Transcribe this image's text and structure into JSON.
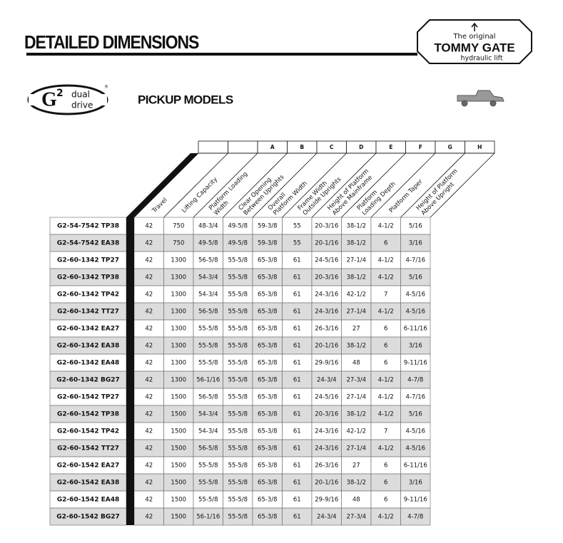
{
  "header": {
    "title": "DETAILED DIMENSIONS",
    "section": "PICKUP MODELS"
  },
  "brand": {
    "tagline": "The original",
    "name": "TOMMY GATE",
    "product": "hydraulic lift"
  },
  "g2_logo": {
    "letter": "G",
    "superscript": "2",
    "line1": "dual",
    "line2": "drive",
    "mark": "®"
  },
  "table": {
    "letters": [
      "A",
      "B",
      "C",
      "D",
      "E",
      "F",
      "G",
      "H"
    ],
    "headers": [
      [
        "Travel"
      ],
      [
        "Lifting Capacity"
      ],
      [
        "Platform Loading",
        "Width"
      ],
      [
        "Clear Opening",
        "Between Uprights"
      ],
      [
        "Overall",
        "Platform Width"
      ],
      [
        "Frame Width",
        "Outside Uprights"
      ],
      [
        "Height of Platform",
        "Above Mainframe"
      ],
      [
        "Platform",
        "Loading Depth"
      ],
      [
        "Platform Taper"
      ],
      [
        "Height of Platform",
        "Above Upright"
      ]
    ],
    "rows": [
      [
        "G2-54-7542 TP38",
        "42",
        "750",
        "48-3/4",
        "49-5/8",
        "59-3/8",
        "55",
        "20-3/16",
        "38-1/2",
        "4-1/2",
        "5/16"
      ],
      [
        "G2-54-7542 EA38",
        "42",
        "750",
        "49-5/8",
        "49-5/8",
        "59-3/8",
        "55",
        "20-1/16",
        "38-1/2",
        "6",
        "3/16"
      ],
      [
        "G2-60-1342 TP27",
        "42",
        "1300",
        "56-5/8",
        "55-5/8",
        "65-3/8",
        "61",
        "24-5/16",
        "27-1/4",
        "4-1/2",
        "4-7/16"
      ],
      [
        "G2-60-1342 TP38",
        "42",
        "1300",
        "54-3/4",
        "55-5/8",
        "65-3/8",
        "61",
        "20-3/16",
        "38-1/2",
        "4-1/2",
        "5/16"
      ],
      [
        "G2-60-1342 TP42",
        "42",
        "1300",
        "54-3/4",
        "55-5/8",
        "65-3/8",
        "61",
        "24-3/16",
        "42-1/2",
        "7",
        "4-5/16"
      ],
      [
        "G2-60-1342 TT27",
        "42",
        "1300",
        "56-5/8",
        "55-5/8",
        "65-3/8",
        "61",
        "24-3/16",
        "27-1/4",
        "4-1/2",
        "4-5/16"
      ],
      [
        "G2-60-1342 EA27",
        "42",
        "1300",
        "55-5/8",
        "55-5/8",
        "65-3/8",
        "61",
        "26-3/16",
        "27",
        "6",
        "6-11/16"
      ],
      [
        "G2-60-1342 EA38",
        "42",
        "1300",
        "55-5/8",
        "55-5/8",
        "65-3/8",
        "61",
        "20-1/16",
        "38-1/2",
        "6",
        "3/16"
      ],
      [
        "G2-60-1342 EA48",
        "42",
        "1300",
        "55-5/8",
        "55-5/8",
        "65-3/8",
        "61",
        "29-9/16",
        "48",
        "6",
        "9-11/16"
      ],
      [
        "G2-60-1342 BG27",
        "42",
        "1300",
        "56-1/16",
        "55-5/8",
        "65-3/8",
        "61",
        "24-3/4",
        "27-3/4",
        "4-1/2",
        "4-7/8"
      ],
      [
        "G2-60-1542 TP27",
        "42",
        "1500",
        "56-5/8",
        "55-5/8",
        "65-3/8",
        "61",
        "24-5/16",
        "27-1/4",
        "4-1/2",
        "4-7/16"
      ],
      [
        "G2-60-1542 TP38",
        "42",
        "1500",
        "54-3/4",
        "55-5/8",
        "65-3/8",
        "61",
        "20-3/16",
        "38-1/2",
        "4-1/2",
        "5/16"
      ],
      [
        "G2-60-1542 TP42",
        "42",
        "1500",
        "54-3/4",
        "55-5/8",
        "65-3/8",
        "61",
        "24-3/16",
        "42-1/2",
        "7",
        "4-5/16"
      ],
      [
        "G2-60-1542 TT27",
        "42",
        "1500",
        "56-5/8",
        "55-5/8",
        "65-3/8",
        "61",
        "24-3/16",
        "27-1/4",
        "4-1/2",
        "4-5/16"
      ],
      [
        "G2-60-1542 EA27",
        "42",
        "1500",
        "55-5/8",
        "55-5/8",
        "65-3/8",
        "61",
        "26-3/16",
        "27",
        "6",
        "6-11/16"
      ],
      [
        "G2-60-1542 EA38",
        "42",
        "1500",
        "55-5/8",
        "55-5/8",
        "65-3/8",
        "61",
        "20-1/16",
        "38-1/2",
        "6",
        "3/16"
      ],
      [
        "G2-60-1542 EA48",
        "42",
        "1500",
        "55-5/8",
        "55-5/8",
        "65-3/8",
        "61",
        "29-9/16",
        "48",
        "6",
        "9-11/16"
      ],
      [
        "G2-60-1542 BG27",
        "42",
        "1500",
        "56-1/16",
        "55-5/8",
        "65-3/8",
        "61",
        "24-3/4",
        "27-3/4",
        "4-1/2",
        "4-7/8"
      ]
    ]
  }
}
